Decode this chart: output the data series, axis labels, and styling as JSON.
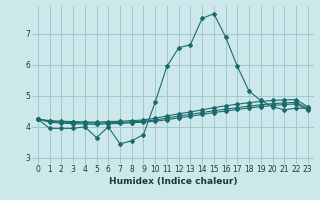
{
  "xlabel": "Humidex (Indice chaleur)",
  "bg_color": "#cde8eb",
  "grid_color": "#a0c8cc",
  "line_color": "#1a6b6b",
  "xlim": [
    -0.5,
    23.5
  ],
  "ylim": [
    2.8,
    7.9
  ],
  "yticks": [
    3,
    4,
    5,
    6,
    7
  ],
  "xticks": [
    0,
    1,
    2,
    3,
    4,
    5,
    6,
    7,
    8,
    9,
    10,
    11,
    12,
    13,
    14,
    15,
    16,
    17,
    18,
    19,
    20,
    21,
    22,
    23
  ],
  "line1_x": [
    0,
    1,
    2,
    3,
    4,
    5,
    6,
    7,
    8,
    9,
    10,
    11,
    12,
    13,
    14,
    15,
    16,
    17,
    18,
    19,
    20,
    21,
    22,
    23
  ],
  "line1_y": [
    4.25,
    3.95,
    3.95,
    3.95,
    4.0,
    3.65,
    4.0,
    3.45,
    3.55,
    3.75,
    4.8,
    5.95,
    6.55,
    6.65,
    7.5,
    7.65,
    6.9,
    5.95,
    5.15,
    4.85,
    4.65,
    4.55,
    4.6,
    4.6
  ],
  "line2_x": [
    0,
    1,
    2,
    3,
    4,
    5,
    6,
    7,
    8,
    9,
    10,
    11,
    12,
    13,
    14,
    15,
    16,
    17,
    18,
    19,
    20,
    21,
    22,
    23
  ],
  "line2_y": [
    4.25,
    4.2,
    4.18,
    4.17,
    4.16,
    4.15,
    4.17,
    4.18,
    4.2,
    4.22,
    4.28,
    4.35,
    4.42,
    4.48,
    4.55,
    4.62,
    4.68,
    4.73,
    4.78,
    4.82,
    4.85,
    4.87,
    4.88,
    4.65
  ],
  "line3_x": [
    0,
    1,
    2,
    3,
    4,
    5,
    6,
    7,
    8,
    9,
    10,
    11,
    12,
    13,
    14,
    15,
    16,
    17,
    18,
    19,
    20,
    21,
    22,
    23
  ],
  "line3_y": [
    4.25,
    4.18,
    4.15,
    4.14,
    4.13,
    4.12,
    4.13,
    4.14,
    4.16,
    4.18,
    4.22,
    4.28,
    4.35,
    4.4,
    4.46,
    4.52,
    4.57,
    4.62,
    4.67,
    4.71,
    4.75,
    4.77,
    4.79,
    4.6
  ],
  "line4_x": [
    0,
    1,
    2,
    3,
    4,
    5,
    6,
    7,
    8,
    9,
    10,
    11,
    12,
    13,
    14,
    15,
    16,
    17,
    18,
    19,
    20,
    21,
    22,
    23
  ],
  "line4_y": [
    4.25,
    4.15,
    4.12,
    4.1,
    4.09,
    4.08,
    4.1,
    4.11,
    4.13,
    4.15,
    4.18,
    4.23,
    4.29,
    4.34,
    4.4,
    4.46,
    4.51,
    4.56,
    4.61,
    4.65,
    4.69,
    4.72,
    4.74,
    4.55
  ]
}
